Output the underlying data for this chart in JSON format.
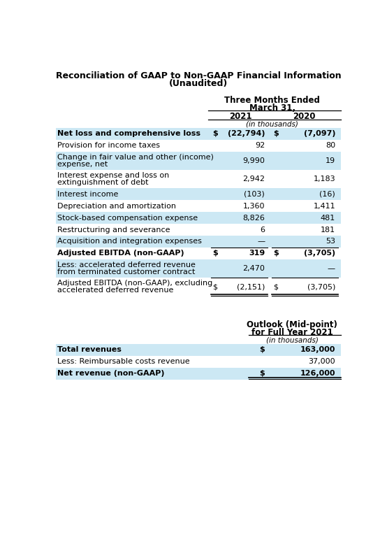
{
  "title_line1": "Reconciliation of GAAP to Non-GAAP Financial Information",
  "title_line2": "(Unaudited)",
  "section1_header1": "Three Months Ended",
  "section1_header2": "March 31,",
  "section1_col1": "2021",
  "section1_col2": "2020",
  "section1_subheader": "(in thousands)",
  "bg_color_highlight": "#cce8f4",
  "rows": [
    {
      "label": "Net loss and comprehensive loss",
      "d1": "$",
      "v1": "(22,794)",
      "d2": "$",
      "v2": "(7,097)",
      "bold": true,
      "highlight": true,
      "nlines": 1,
      "line_below": false
    },
    {
      "label": "Provision for income taxes",
      "d1": "",
      "v1": "92",
      "d2": "",
      "v2": "80",
      "bold": false,
      "highlight": false,
      "nlines": 1,
      "line_below": false
    },
    {
      "label": "Change in fair value and other (income)\nexpense, net",
      "d1": "",
      "v1": "9,990",
      "d2": "",
      "v2": "19",
      "bold": false,
      "highlight": true,
      "nlines": 2,
      "line_below": false
    },
    {
      "label": "Interest expense and loss on\nextinguishment of debt",
      "d1": "",
      "v1": "2,942",
      "d2": "",
      "v2": "1,183",
      "bold": false,
      "highlight": false,
      "nlines": 2,
      "line_below": false
    },
    {
      "label": "Interest income",
      "d1": "",
      "v1": "(103)",
      "d2": "",
      "v2": "(16)",
      "bold": false,
      "highlight": true,
      "nlines": 1,
      "line_below": false
    },
    {
      "label": "Depreciation and amortization",
      "d1": "",
      "v1": "1,360",
      "d2": "",
      "v2": "1,411",
      "bold": false,
      "highlight": false,
      "nlines": 1,
      "line_below": false
    },
    {
      "label": "Stock-based compensation expense",
      "d1": "",
      "v1": "8,826",
      "d2": "",
      "v2": "481",
      "bold": false,
      "highlight": true,
      "nlines": 1,
      "line_below": false
    },
    {
      "label": "Restructuring and severance",
      "d1": "",
      "v1": "6",
      "d2": "",
      "v2": "181",
      "bold": false,
      "highlight": false,
      "nlines": 1,
      "line_below": false
    },
    {
      "label": "Acquisition and integration expenses",
      "d1": "",
      "v1": "—",
      "d2": "",
      "v2": "53",
      "bold": false,
      "highlight": true,
      "nlines": 1,
      "line_below": true
    },
    {
      "label": "Adjusted EBITDA (non-GAAP)",
      "d1": "$",
      "v1": "319",
      "d2": "$",
      "v2": "(3,705)",
      "bold": true,
      "highlight": false,
      "nlines": 1,
      "line_below": false
    },
    {
      "label": "Less: accelerated deferred revenue\nfrom terminated customer contract",
      "d1": "",
      "v1": "2,470",
      "d2": "",
      "v2": "—",
      "bold": false,
      "highlight": true,
      "nlines": 2,
      "line_below": true
    },
    {
      "label": "Adjusted EBITDA (non-GAAP), excluding\naccelerated deferred revenue",
      "d1": "$",
      "v1": "(2,151)",
      "d2": "$",
      "v2": "(3,705)",
      "bold": false,
      "highlight": false,
      "nlines": 2,
      "line_below": true
    }
  ],
  "rows2": [
    {
      "label": "Total revenues",
      "d1": "$",
      "v1": "163,000",
      "bold": true,
      "highlight": true
    },
    {
      "label": "Less: Reimbursable costs revenue",
      "d1": "",
      "v1": "37,000",
      "bold": false,
      "highlight": false
    },
    {
      "label": "Net revenue (non-GAAP)",
      "d1": "$",
      "v1": "126,000",
      "bold": true,
      "highlight": true
    }
  ]
}
